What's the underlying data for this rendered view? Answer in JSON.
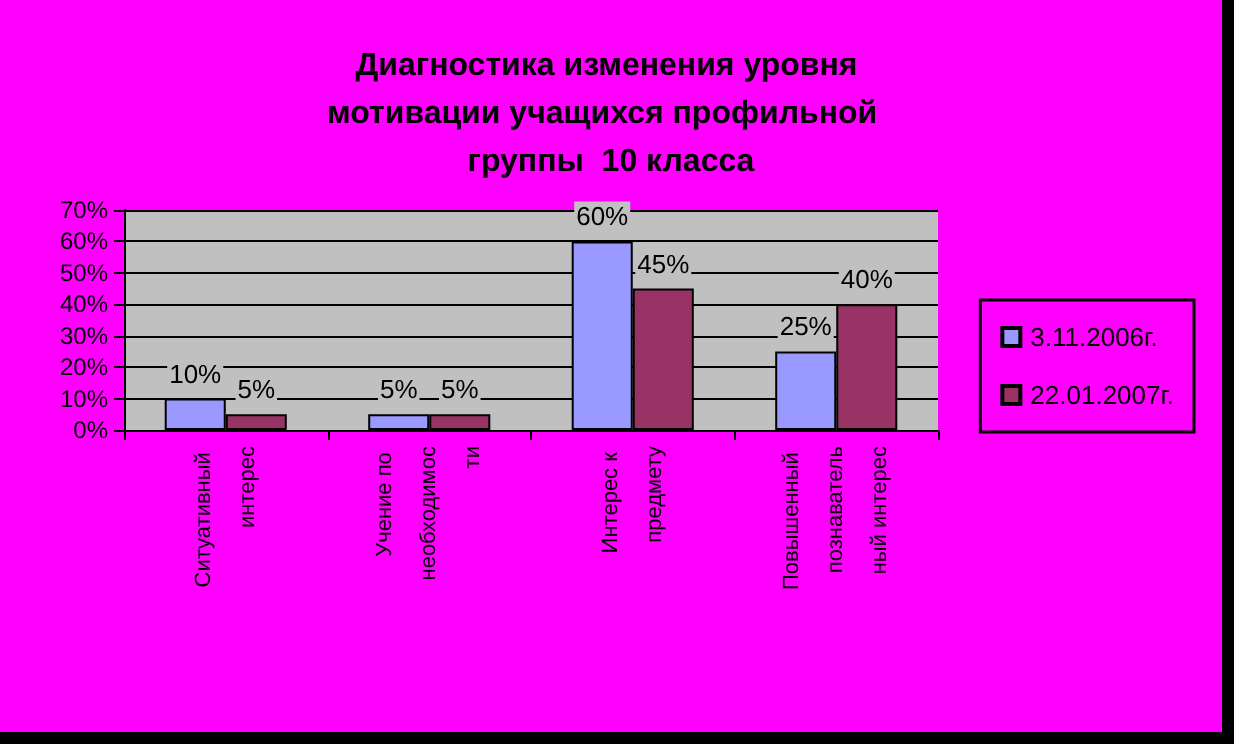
{
  "chart_data": {
    "type": "bar",
    "title": "Диагностика изменения уровня мотивации учащихся профильной  группы  10 класса",
    "categories": [
      "Ситуативный интерес",
      "Учение по необходимости",
      "Интерес к предмету",
      "Повышенный познавательный интерес"
    ],
    "series": [
      {
        "name": "3.11.2006г.",
        "color": "#9999ff",
        "values": [
          10,
          5,
          60,
          25
        ],
        "value_labels": [
          "10%",
          "5%",
          "60%",
          "25%"
        ]
      },
      {
        "name": "22.01.2007г.",
        "color": "#993366",
        "values": [
          5,
          5,
          45,
          40
        ],
        "value_labels": [
          "5%",
          "5%",
          "45%",
          "40%"
        ]
      }
    ],
    "ylim": [
      0,
      70
    ],
    "yticks": [
      {
        "value": 0,
        "label": "0%"
      },
      {
        "value": 10,
        "label": "10%"
      },
      {
        "value": 20,
        "label": "20%"
      },
      {
        "value": 30,
        "label": "30%"
      },
      {
        "value": 40,
        "label": "40%"
      },
      {
        "value": 50,
        "label": "50%"
      },
      {
        "value": 60,
        "label": "60%"
      },
      {
        "value": 70,
        "label": "70%"
      }
    ],
    "grid": "y",
    "legend": "right"
  }
}
